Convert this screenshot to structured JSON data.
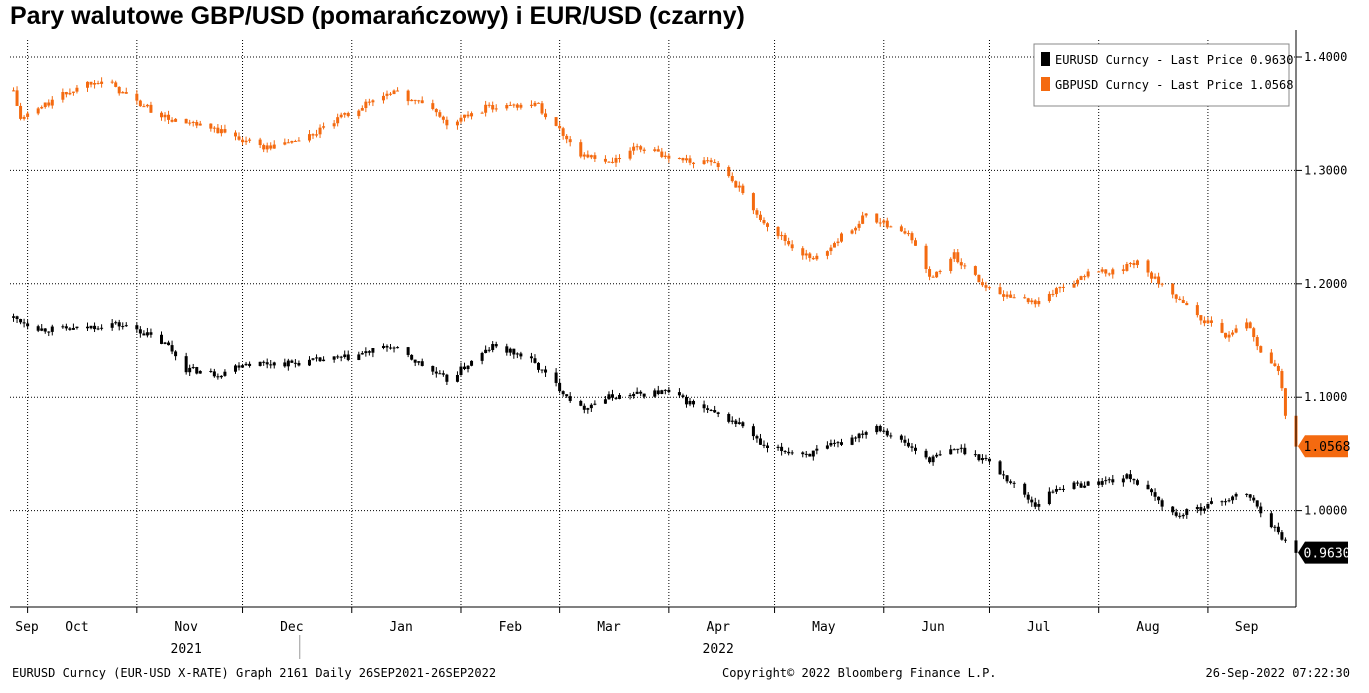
{
  "title": "Pary walutowe GBP/USD (pomarańczowy) i EUR/USD (czarny)",
  "footer": {
    "left": "EURUSD Curncy (EUR-USD X-RATE) Graph 2161  Daily 26SEP2021-26SEP2022",
    "center": "Copyright© 2022 Bloomberg Finance L.P.",
    "right": "26-Sep-2022 07:22:30"
  },
  "chart_data": {
    "type": "line",
    "legend_position": "top-right",
    "grid": true,
    "ylim": [
      0.915,
      1.415
    ],
    "y_ticks": [
      "1.4000",
      "1.3000",
      "1.2000",
      "1.1000",
      "1.0000"
    ],
    "y_tick_values": [
      1.4,
      1.3,
      1.2,
      1.1,
      1.0
    ],
    "x_month_labels": [
      "Sep",
      "Oct",
      "Nov",
      "Dec",
      "Jan",
      "Feb",
      "Mar",
      "Apr",
      "May",
      "Jun",
      "Jul",
      "Aug",
      "Sep"
    ],
    "x_year_labels": [
      {
        "label": "2021",
        "month_index": 2
      },
      {
        "label": "2022",
        "month_index": 7
      }
    ],
    "x_start": "2021-09-26",
    "x_end": "2022-09-26",
    "series": [
      {
        "name": "EURUSD Curncy - Last Price 0.9630",
        "color": "#000000",
        "last_label": "0.9630",
        "dates": [
          "2021-09-27",
          "2021-10-05",
          "2021-10-15",
          "2021-10-25",
          "2021-11-01",
          "2021-11-10",
          "2021-11-15",
          "2021-11-24",
          "2021-12-01",
          "2021-12-15",
          "2021-12-31",
          "2022-01-12",
          "2022-01-20",
          "2022-01-28",
          "2022-02-10",
          "2022-02-20",
          "2022-03-07",
          "2022-03-15",
          "2022-03-31",
          "2022-04-14",
          "2022-04-22",
          "2022-04-28",
          "2022-05-11",
          "2022-05-20",
          "2022-05-30",
          "2022-06-14",
          "2022-06-22",
          "2022-06-30",
          "2022-07-14",
          "2022-07-20",
          "2022-08-01",
          "2022-08-10",
          "2022-08-23",
          "2022-09-01",
          "2022-09-12",
          "2022-09-16",
          "2022-09-21",
          "2022-09-26"
        ],
        "values": [
          1.17,
          1.16,
          1.16,
          1.165,
          1.16,
          1.145,
          1.125,
          1.12,
          1.13,
          1.13,
          1.135,
          1.145,
          1.13,
          1.115,
          1.145,
          1.135,
          1.09,
          1.1,
          1.105,
          1.085,
          1.075,
          1.055,
          1.05,
          1.06,
          1.075,
          1.045,
          1.055,
          1.045,
          1.005,
          1.02,
          1.025,
          1.03,
          0.995,
          1.005,
          1.015,
          1.0,
          0.98,
          0.963
        ]
      },
      {
        "name": "GBPUSD Curncy - Last Price 1.0568",
        "color": "#f46a10",
        "last_label": "1.0568",
        "dates": [
          "2021-09-27",
          "2021-09-29",
          "2021-10-10",
          "2021-10-20",
          "2021-10-25",
          "2021-11-01",
          "2021-11-10",
          "2021-11-24",
          "2021-12-08",
          "2021-12-20",
          "2021-12-31",
          "2022-01-12",
          "2022-01-24",
          "2022-01-28",
          "2022-02-08",
          "2022-02-22",
          "2022-03-07",
          "2022-03-15",
          "2022-03-23",
          "2022-04-04",
          "2022-04-15",
          "2022-04-22",
          "2022-04-28",
          "2022-05-05",
          "2022-05-12",
          "2022-05-27",
          "2022-06-08",
          "2022-06-14",
          "2022-06-21",
          "2022-07-01",
          "2022-07-06",
          "2022-07-14",
          "2022-07-30",
          "2022-08-05",
          "2022-08-12",
          "2022-08-23",
          "2022-09-06",
          "2022-09-12",
          "2022-09-16",
          "2022-09-21",
          "2022-09-23",
          "2022-09-26"
        ],
        "values": [
          1.37,
          1.345,
          1.365,
          1.38,
          1.375,
          1.36,
          1.345,
          1.335,
          1.32,
          1.33,
          1.35,
          1.37,
          1.355,
          1.34,
          1.355,
          1.36,
          1.315,
          1.305,
          1.32,
          1.31,
          1.305,
          1.28,
          1.255,
          1.235,
          1.22,
          1.26,
          1.245,
          1.205,
          1.225,
          1.195,
          1.19,
          1.185,
          1.21,
          1.21,
          1.22,
          1.185,
          1.155,
          1.165,
          1.14,
          1.125,
          1.085,
          1.0568
        ]
      }
    ]
  }
}
